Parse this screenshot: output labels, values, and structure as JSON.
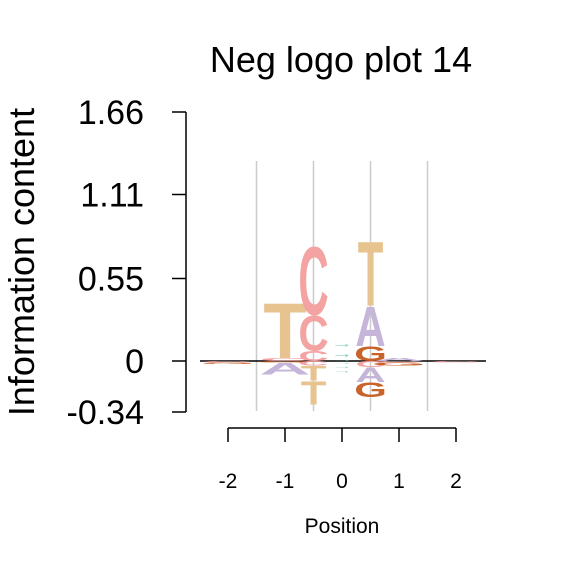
{
  "chart_data": {
    "type": "sequence-logo",
    "title": "Neg logo plot 14",
    "xlabel": "Position",
    "ylabel": "Information content",
    "yticks": [
      "1.66",
      "1.11",
      "0.55",
      "0",
      "-0.34"
    ],
    "ytick_values": [
      1.66,
      1.11,
      0.55,
      0,
      -0.34
    ],
    "xticks": [
      "-2",
      "-1",
      "0",
      "1",
      "2"
    ],
    "xtick_values": [
      -2,
      -1,
      0,
      1,
      2
    ],
    "ylim": [
      -0.34,
      1.66
    ],
    "xlim": [
      -2,
      2
    ],
    "grid": true,
    "colors": {
      "A": "#c4b5d9",
      "C": "#f4a3a3",
      "G": "#c8632a",
      "T": "#e6c38f",
      "arrow": "#8fd1be",
      "gridline": "#cccccc"
    },
    "columns": [
      {
        "position": -2,
        "letters": [
          {
            "letter": "C",
            "value": -0.01,
            "color": "#f4a3a3"
          },
          {
            "letter": "G",
            "value": -0.01,
            "color": "#c8632a"
          }
        ]
      },
      {
        "position": -1,
        "letters": [
          {
            "letter": "C",
            "value": 0.02,
            "color": "#f4a3a3"
          },
          {
            "letter": "T",
            "value": 0.38,
            "color": "#e6c38f"
          },
          {
            "letter": "G",
            "value": -0.01,
            "color": "#c8632a"
          },
          {
            "letter": "A",
            "value": -0.08,
            "color": "#c4b5d9"
          }
        ]
      },
      {
        "position": -0.5,
        "letters": [
          {
            "letter": "C",
            "value": 0.07,
            "color": "#f4a3a3"
          },
          {
            "letter": "C",
            "value": 0.24,
            "color": "#f4a3a3"
          },
          {
            "letter": "C",
            "value": 0.47,
            "color": "#f4a3a3"
          },
          {
            "letter": "C",
            "value": -0.03,
            "color": "#f4a3a3"
          },
          {
            "letter": "T",
            "value": -0.1,
            "color": "#e6c38f"
          },
          {
            "letter": "T",
            "value": -0.16,
            "color": "#e6c38f"
          }
        ]
      },
      {
        "position": 0,
        "letters": [
          {
            "letter": "→",
            "value": 0.02,
            "color": "#8fd1be"
          },
          {
            "letter": "→",
            "value": 0.07,
            "color": "#8fd1be"
          },
          {
            "letter": "→",
            "value": 0.06,
            "color": "#8fd1be"
          },
          {
            "letter": "→",
            "value": -0.02,
            "color": "#8fd1be"
          },
          {
            "letter": "→",
            "value": -0.03,
            "color": "#8fd1be"
          },
          {
            "letter": "→",
            "value": -0.03,
            "color": "#8fd1be"
          }
        ]
      },
      {
        "position": 0.5,
        "letters": [
          {
            "letter": "G",
            "value": 0.1,
            "color": "#c8632a"
          },
          {
            "letter": "A",
            "value": 0.27,
            "color": "#c4b5d9"
          },
          {
            "letter": "T",
            "value": 0.44,
            "color": "#e6c38f"
          },
          {
            "letter": "C",
            "value": -0.04,
            "color": "#f4a3a3"
          },
          {
            "letter": "A",
            "value": -0.1,
            "color": "#c4b5d9"
          },
          {
            "letter": "G",
            "value": -0.1,
            "color": "#c8632a"
          }
        ]
      },
      {
        "position": 1,
        "letters": [
          {
            "letter": "A",
            "value": 0.02,
            "color": "#c4b5d9"
          },
          {
            "letter": "C",
            "value": -0.01,
            "color": "#f4a3a3"
          },
          {
            "letter": "G",
            "value": -0.02,
            "color": "#c8632a"
          }
        ]
      },
      {
        "position": 2,
        "letters": [
          {
            "letter": "C",
            "value": -0.01,
            "color": "#f4a3a3"
          }
        ]
      }
    ]
  }
}
